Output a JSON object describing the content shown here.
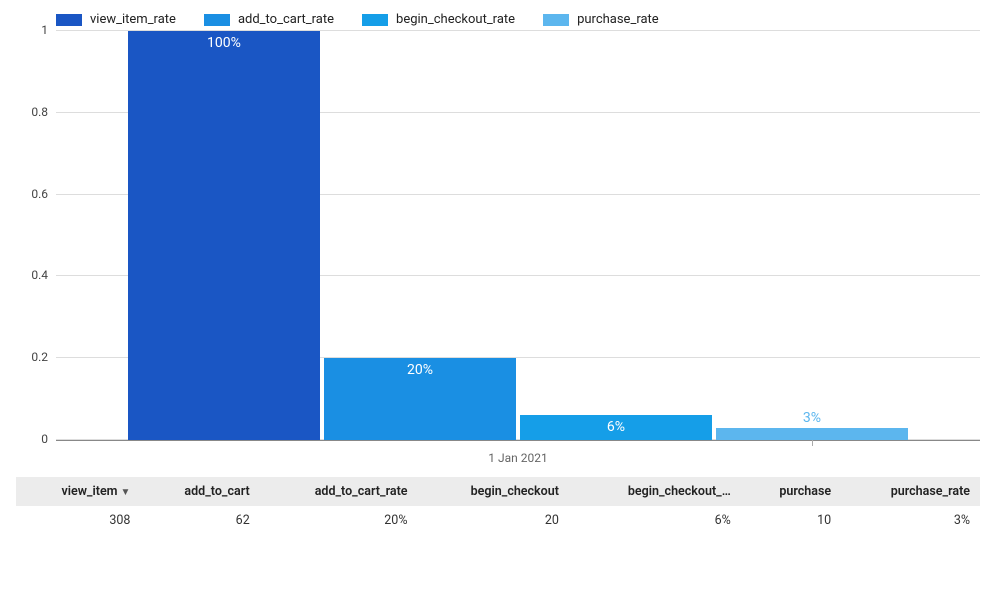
{
  "legend": {
    "items": [
      {
        "label": "view_item_rate",
        "color": "#1a56c4"
      },
      {
        "label": "add_to_cart_rate",
        "color": "#1a8fe3"
      },
      {
        "label": "begin_checkout_rate",
        "color": "#159ee8"
      },
      {
        "label": "purchase_rate",
        "color": "#5cb6ee"
      }
    ]
  },
  "chart": {
    "type": "bar",
    "x_axis_label": "1 Jan 2021",
    "ylim": [
      0,
      1
    ],
    "ytick_step": 0.2,
    "yticks": [
      {
        "v": 0,
        "label": "0"
      },
      {
        "v": 0.2,
        "label": "0.2"
      },
      {
        "v": 0.4,
        "label": "0.4"
      },
      {
        "v": 0.6,
        "label": "0.6"
      },
      {
        "v": 0.8,
        "label": "0.8"
      },
      {
        "v": 1.0,
        "label": "1"
      }
    ],
    "grid_color": "#dddddd",
    "axis_color": "#888888",
    "background_color": "#ffffff",
    "bars": [
      {
        "value": 1.0,
        "label": "100%",
        "color": "#1a56c4",
        "label_inside": true
      },
      {
        "value": 0.2,
        "label": "20%",
        "color": "#1a8fe3",
        "label_inside": true
      },
      {
        "value": 0.06,
        "label": "6%",
        "color": "#159ee8",
        "label_inside": true
      },
      {
        "value": 0.03,
        "label": "3%",
        "color": "#5cb6ee",
        "label_inside": false
      }
    ],
    "label_fontsize": 14,
    "label_color_inside": "#ffffff"
  },
  "table": {
    "columns": [
      {
        "key": "view_item",
        "header": "view_item",
        "sort": "desc"
      },
      {
        "key": "add_to_cart",
        "header": "add_to_cart"
      },
      {
        "key": "add_to_cart_rate",
        "header": "add_to_cart_rate"
      },
      {
        "key": "begin_checkout",
        "header": "begin_checkout"
      },
      {
        "key": "begin_checkout_rate",
        "header": "begin_checkout_…"
      },
      {
        "key": "purchase",
        "header": "purchase"
      },
      {
        "key": "purchase_rate",
        "header": "purchase_rate"
      }
    ],
    "rows": [
      {
        "view_item": "308",
        "add_to_cart": "62",
        "add_to_cart_rate": "20%",
        "begin_checkout": "20",
        "begin_checkout_rate": "6%",
        "purchase": "10",
        "purchase_rate": "3%"
      }
    ],
    "header_bg": "#ececec"
  }
}
